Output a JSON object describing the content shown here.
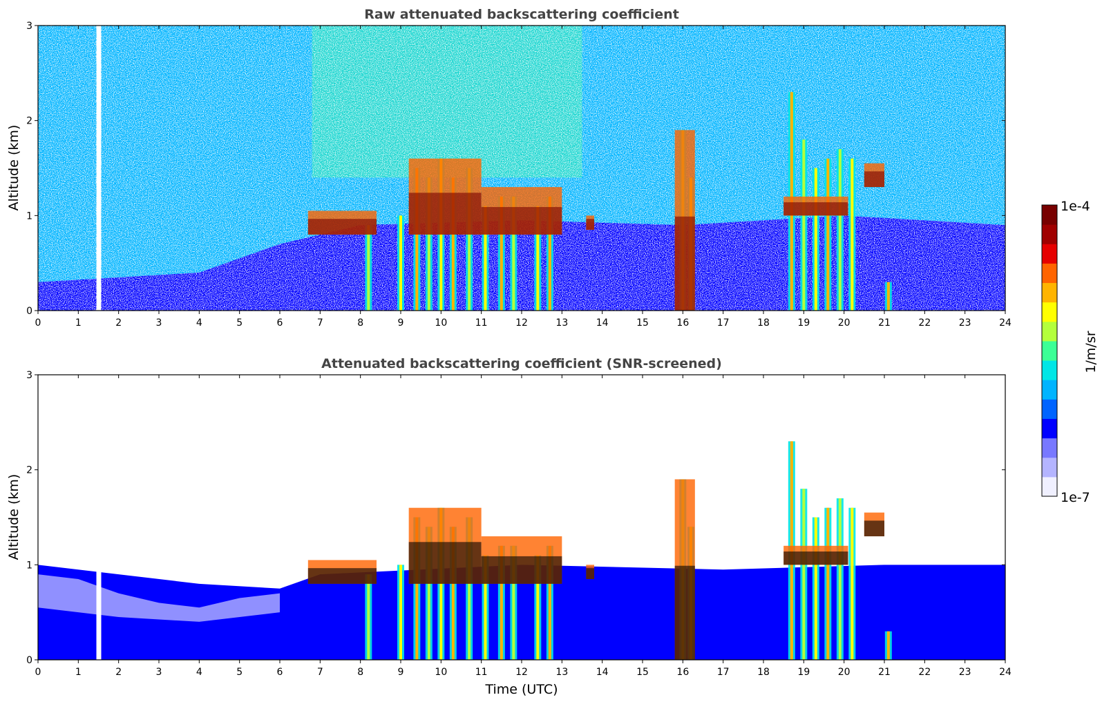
{
  "colors": {
    "colormap": [
      "#f0f0ff",
      "#b4b4ff",
      "#7878ff",
      "#0000ff",
      "#0064ff",
      "#00b4ff",
      "#00e6e6",
      "#3cff96",
      "#b4ff3c",
      "#ffff00",
      "#ffb400",
      "#ff6400",
      "#e60000",
      "#a00000",
      "#780000"
    ],
    "screened_extreme": "#000000",
    "background": "#ffffff"
  },
  "chart_data": [
    {
      "type": "heatmap",
      "title": "Raw attenuated backscattering coefficient",
      "xlabel": "",
      "ylabel": "Altitude (km)",
      "xlim": [
        0,
        24
      ],
      "ylim": [
        0,
        3
      ],
      "xticks": [
        0,
        1,
        2,
        3,
        4,
        5,
        6,
        7,
        8,
        9,
        10,
        11,
        12,
        13,
        14,
        15,
        16,
        17,
        18,
        19,
        20,
        21,
        22,
        23,
        24
      ],
      "yticks": [
        0,
        1,
        2,
        3
      ],
      "screened": false,
      "data_gaps_utc": [
        1.5
      ],
      "boundary_layer_top_km": [
        {
          "x": 0,
          "y": 0.3
        },
        {
          "x": 2,
          "y": 0.35
        },
        {
          "x": 4,
          "y": 0.4
        },
        {
          "x": 6,
          "y": 0.7
        },
        {
          "x": 8,
          "y": 0.9
        },
        {
          "x": 12,
          "y": 0.95
        },
        {
          "x": 16,
          "y": 0.9
        },
        {
          "x": 20,
          "y": 1.0
        },
        {
          "x": 24,
          "y": 0.9
        }
      ],
      "cloud_layers": [
        {
          "t0": 6.7,
          "t1": 8.4,
          "base": 0.8,
          "top": 1.05
        },
        {
          "t0": 9.2,
          "t1": 11.0,
          "base": 0.8,
          "top": 1.6
        },
        {
          "t0": 11.0,
          "t1": 13.0,
          "base": 0.8,
          "top": 1.3
        },
        {
          "t0": 13.6,
          "t1": 13.8,
          "base": 0.85,
          "top": 1.0
        },
        {
          "t0": 15.8,
          "t1": 16.3,
          "base": 0.0,
          "top": 1.9
        },
        {
          "t0": 18.5,
          "t1": 20.1,
          "base": 1.0,
          "top": 1.2
        },
        {
          "t0": 20.5,
          "t1": 21.0,
          "base": 1.3,
          "top": 1.55
        }
      ],
      "precip_shafts": [
        {
          "t": 8.2,
          "top": 0.9
        },
        {
          "t": 9.0,
          "top": 1.0
        },
        {
          "t": 9.4,
          "top": 1.5
        },
        {
          "t": 9.7,
          "top": 1.4
        },
        {
          "t": 10.0,
          "top": 1.6
        },
        {
          "t": 10.3,
          "top": 1.4
        },
        {
          "t": 10.7,
          "top": 1.5
        },
        {
          "t": 11.1,
          "top": 1.1
        },
        {
          "t": 11.5,
          "top": 1.2
        },
        {
          "t": 11.8,
          "top": 1.2
        },
        {
          "t": 12.4,
          "top": 1.1
        },
        {
          "t": 12.7,
          "top": 1.2
        },
        {
          "t": 16.0,
          "top": 1.9
        },
        {
          "t": 16.2,
          "top": 1.4
        },
        {
          "t": 18.7,
          "top": 2.3
        },
        {
          "t": 19.0,
          "top": 1.8
        },
        {
          "t": 19.3,
          "top": 1.5
        },
        {
          "t": 19.6,
          "top": 1.6
        },
        {
          "t": 19.9,
          "top": 1.7
        },
        {
          "t": 20.2,
          "top": 1.6
        },
        {
          "t": 21.1,
          "top": 0.3
        }
      ]
    },
    {
      "type": "heatmap",
      "title": "Attenuated backscattering coefficient (SNR-screened)",
      "xlabel": "Time (UTC)",
      "ylabel": "Altitude (km)",
      "xlim": [
        0,
        24
      ],
      "ylim": [
        0,
        3
      ],
      "xticks": [
        0,
        1,
        2,
        3,
        4,
        5,
        6,
        7,
        8,
        9,
        10,
        11,
        12,
        13,
        14,
        15,
        16,
        17,
        18,
        19,
        20,
        21,
        22,
        23,
        24
      ],
      "yticks": [
        0,
        1,
        2,
        3
      ],
      "screened": true,
      "data_gaps_utc": [
        1.5
      ],
      "screened_top_km": [
        {
          "x": 0,
          "y": 1.0
        },
        {
          "x": 2,
          "y": 0.9
        },
        {
          "x": 4,
          "y": 0.8
        },
        {
          "x": 6,
          "y": 0.75
        },
        {
          "x": 7,
          "y": 0.9
        },
        {
          "x": 12,
          "y": 1.0
        },
        {
          "x": 17,
          "y": 0.95
        },
        {
          "x": 21,
          "y": 1.0
        },
        {
          "x": 24,
          "y": 1.0
        }
      ]
    }
  ],
  "colorbar": {
    "label": "1/m/sr",
    "max_label": "1e-4",
    "min_label": "1e-7"
  }
}
